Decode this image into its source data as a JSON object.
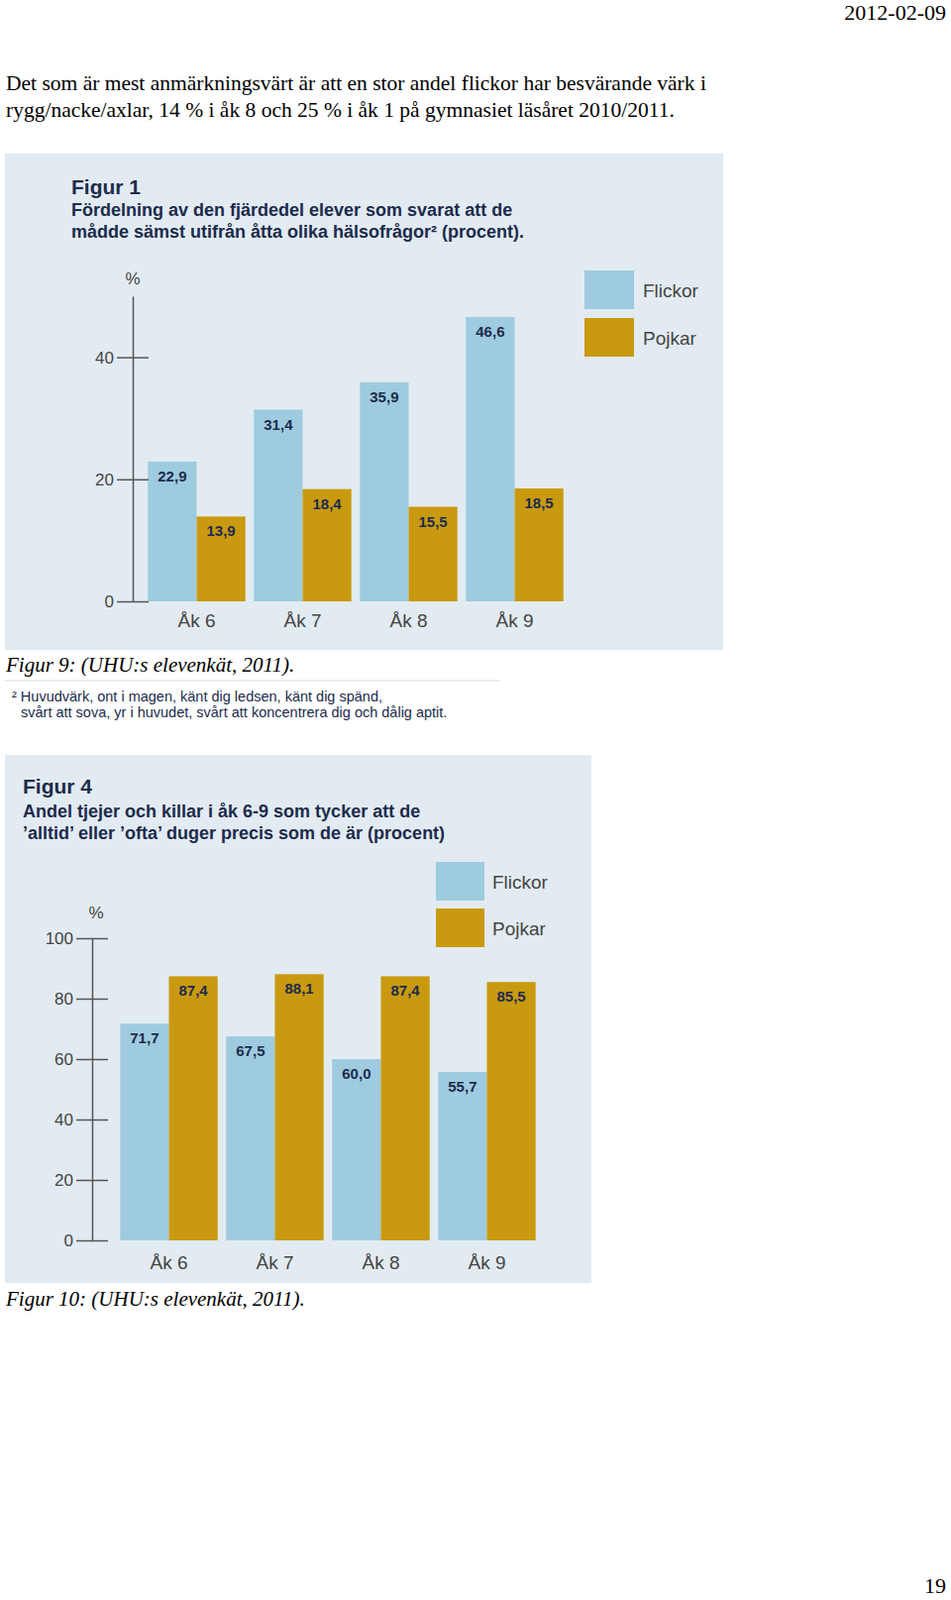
{
  "date": "2012-02-09",
  "paragraph": [
    "Det som är mest anmärkningsvärt är att en stor andel flickor har besvärande värk i",
    "rygg/nacke/axlar, 14 % i åk 8 och 25 % i åk 1 på gymnasiet läsåret 2010/2011."
  ],
  "chart_data": [
    {
      "type": "bar",
      "title": "Figur 1",
      "subtitle": [
        "Fördelning av den fjärdedel elever som svarat att de",
        "mådde sämst utifrån åtta olika hälsofrågor² (procent)."
      ],
      "y_label": "%",
      "categories": [
        "Åk 6",
        "Åk 7",
        "Åk 8",
        "Åk 9"
      ],
      "series": [
        {
          "name": "Flickor",
          "color": "#9ecbdf",
          "values": [
            22.9,
            31.4,
            35.9,
            46.6
          ],
          "value_labels": [
            "22,9",
            "31,4",
            "35,9",
            "46,6"
          ]
        },
        {
          "name": "Pojkar",
          "color": "#c99a0f",
          "values": [
            13.9,
            18.4,
            15.5,
            18.5
          ],
          "value_labels": [
            "13,9",
            "18,4",
            "15,5",
            "18,5"
          ]
        }
      ],
      "ylim": [
        0,
        50
      ],
      "yticks": [
        0,
        20,
        40
      ],
      "grid": false,
      "legend": "top-right",
      "data_labels": true
    },
    {
      "type": "bar",
      "title": "Figur 4",
      "subtitle": [
        "Andel tjejer och killar i åk 6-9 som tycker att de",
        "’alltid’ eller ’ofta’ duger precis som de är (procent)"
      ],
      "y_label": "%",
      "categories": [
        "Åk 6",
        "Åk 7",
        "Åk 8",
        "Åk 9"
      ],
      "series": [
        {
          "name": "Flickor",
          "color": "#9ecbdf",
          "values": [
            71.7,
            67.5,
            60.0,
            55.7
          ],
          "value_labels": [
            "71,7",
            "67,5",
            "60,0",
            "55,7"
          ]
        },
        {
          "name": "Pojkar",
          "color": "#c99a0f",
          "values": [
            87.4,
            88.1,
            87.4,
            85.5
          ],
          "value_labels": [
            "87,4",
            "88,1",
            "87,4",
            "85,5"
          ]
        }
      ],
      "ylim": [
        0,
        100
      ],
      "yticks": [
        0,
        20,
        40,
        60,
        80,
        100
      ],
      "grid": false,
      "legend": "top-right",
      "data_labels": true
    }
  ],
  "captions": [
    "Figur 9: (UHU:s elevenkät, 2011).",
    "Figur 10: (UHU:s elevenkät, 2011)."
  ],
  "footnote": [
    "² Huvudvärk, ont i magen, känt dig ledsen, känt dig spänd,",
    "svårt att sova, yr i huvudet, svårt att koncentrera dig och dålig aptit."
  ],
  "page_number": "19"
}
